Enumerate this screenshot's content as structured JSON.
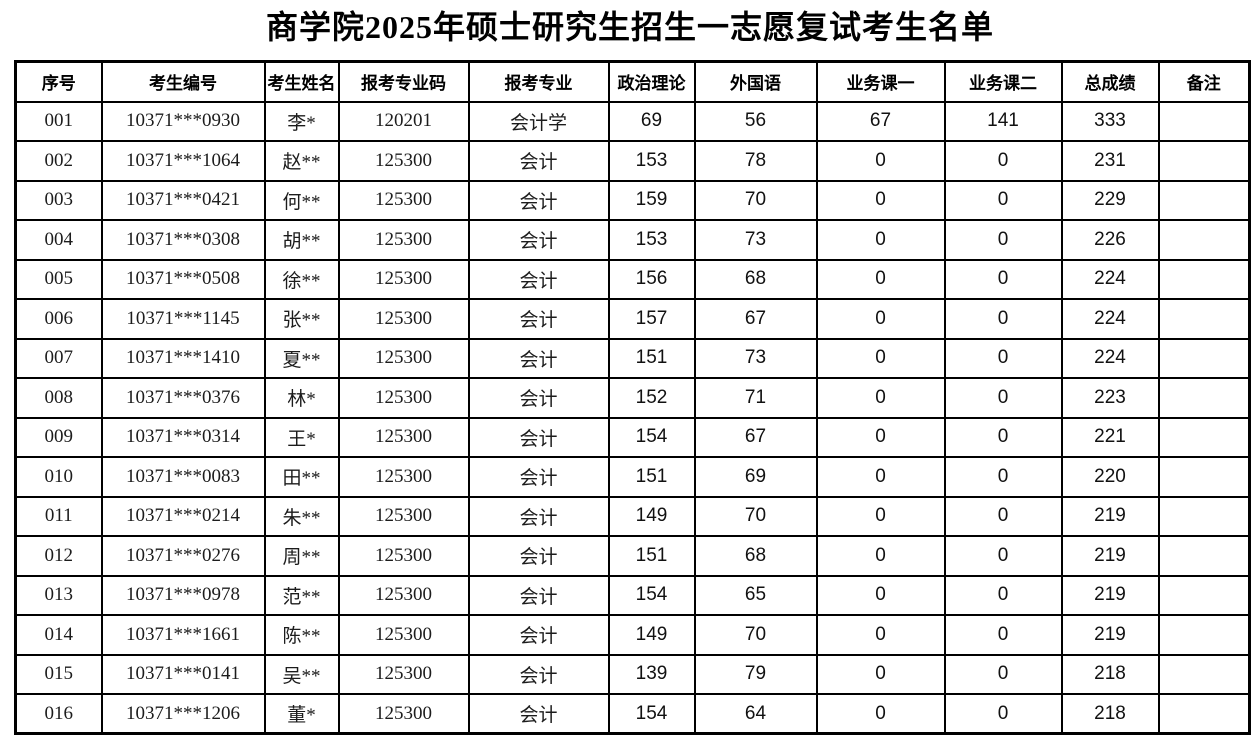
{
  "title": "商学院2025年硕士研究生招生一志愿复试考生名单",
  "table": {
    "headers": [
      "序号",
      "考生编号",
      "考生姓名",
      "报考专业码",
      "报考专业",
      "政治理论",
      "外国语",
      "业务课一",
      "业务课二",
      "总成绩",
      "备注"
    ],
    "rows": [
      [
        "001",
        "10371***0930",
        "李*",
        "120201",
        "会计学",
        "69",
        "56",
        "67",
        "141",
        "333",
        ""
      ],
      [
        "002",
        "10371***1064",
        "赵**",
        "125300",
        "会计",
        "153",
        "78",
        "0",
        "0",
        "231",
        ""
      ],
      [
        "003",
        "10371***0421",
        "何**",
        "125300",
        "会计",
        "159",
        "70",
        "0",
        "0",
        "229",
        ""
      ],
      [
        "004",
        "10371***0308",
        "胡**",
        "125300",
        "会计",
        "153",
        "73",
        "0",
        "0",
        "226",
        ""
      ],
      [
        "005",
        "10371***0508",
        "徐**",
        "125300",
        "会计",
        "156",
        "68",
        "0",
        "0",
        "224",
        ""
      ],
      [
        "006",
        "10371***1145",
        "张**",
        "125300",
        "会计",
        "157",
        "67",
        "0",
        "0",
        "224",
        ""
      ],
      [
        "007",
        "10371***1410",
        "夏**",
        "125300",
        "会计",
        "151",
        "73",
        "0",
        "0",
        "224",
        ""
      ],
      [
        "008",
        "10371***0376",
        "林*",
        "125300",
        "会计",
        "152",
        "71",
        "0",
        "0",
        "223",
        ""
      ],
      [
        "009",
        "10371***0314",
        "王*",
        "125300",
        "会计",
        "154",
        "67",
        "0",
        "0",
        "221",
        ""
      ],
      [
        "010",
        "10371***0083",
        "田**",
        "125300",
        "会计",
        "151",
        "69",
        "0",
        "0",
        "220",
        ""
      ],
      [
        "011",
        "10371***0214",
        "朱**",
        "125300",
        "会计",
        "149",
        "70",
        "0",
        "0",
        "219",
        ""
      ],
      [
        "012",
        "10371***0276",
        "周**",
        "125300",
        "会计",
        "151",
        "68",
        "0",
        "0",
        "219",
        ""
      ],
      [
        "013",
        "10371***0978",
        "范**",
        "125300",
        "会计",
        "154",
        "65",
        "0",
        "0",
        "219",
        ""
      ],
      [
        "014",
        "10371***1661",
        "陈**",
        "125300",
        "会计",
        "149",
        "70",
        "0",
        "0",
        "219",
        ""
      ],
      [
        "015",
        "10371***0141",
        "吴**",
        "125300",
        "会计",
        "139",
        "79",
        "0",
        "0",
        "218",
        ""
      ],
      [
        "016",
        "10371***1206",
        "董*",
        "125300",
        "会计",
        "154",
        "64",
        "0",
        "0",
        "218",
        ""
      ]
    ]
  }
}
